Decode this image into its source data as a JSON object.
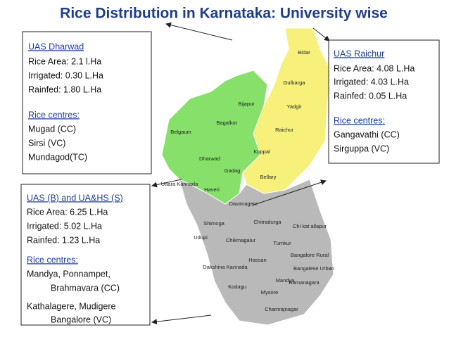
{
  "title": "Rice Distribution in Karnataka: University wise",
  "boxes": [
    {
      "heading": "UAS Dharwad",
      "lines": [
        " Rice Area: 2.1 l.Ha",
        "Irrigated: 0.30 L.Ha",
        "Rainfed:  1.80 L.Ha"
      ],
      "centres_heading": "Rice centres:",
      "centres": [
        "Mugad (CC)",
        "Sirsi (VC)",
        "Mundagod(TC)"
      ]
    },
    {
      "heading": "UAS Raichur",
      "lines": [
        "Rice Area: 4.08 L.Ha",
        "Irrigated: 4.03 L.Ha",
        "Rainfed: 0.05 L.Ha"
      ],
      "centres_heading": "Rice centres:",
      "centres": [
        "Gangavathi (CC)",
        "Sirguppa (VC)"
      ]
    },
    {
      "heading": "UAS (B) and UA&HS (S)",
      "lines": [
        " Rice Area: 6.25 L.Ha",
        "Irrigated: 5.02 L.Ha",
        "Rainfed:  1.23 L.Ha"
      ],
      "centres_heading": "Rice centres:",
      "centres": [
        "Mandya, Ponnampet,",
        "Brahmavara (CC)",
        "Kathalagere, Mudigere",
        "Bangalore (VC)"
      ]
    }
  ],
  "map_labels": [
    "Bidar",
    "Gulbarga",
    "Yadgir",
    "Bijapur",
    "Bagalkot",
    "Raichur",
    "Belgaum",
    "Koppal",
    "Dharwad",
    "Gadag",
    "Bellary",
    "Uttara Kannada",
    "Haveri",
    "Davanagere",
    "Shimoga",
    "Chitradurga",
    "Udupi",
    "Chikmagalur",
    "Tumkur",
    "Chi kat allapur",
    "Bangalore Rural",
    "Hassan",
    "Bangalese Urban",
    "Dakshina Kannada",
    "Ramanagara",
    "Mandya",
    "Kodagu",
    "Mysore",
    "Chamrajnagar"
  ]
}
